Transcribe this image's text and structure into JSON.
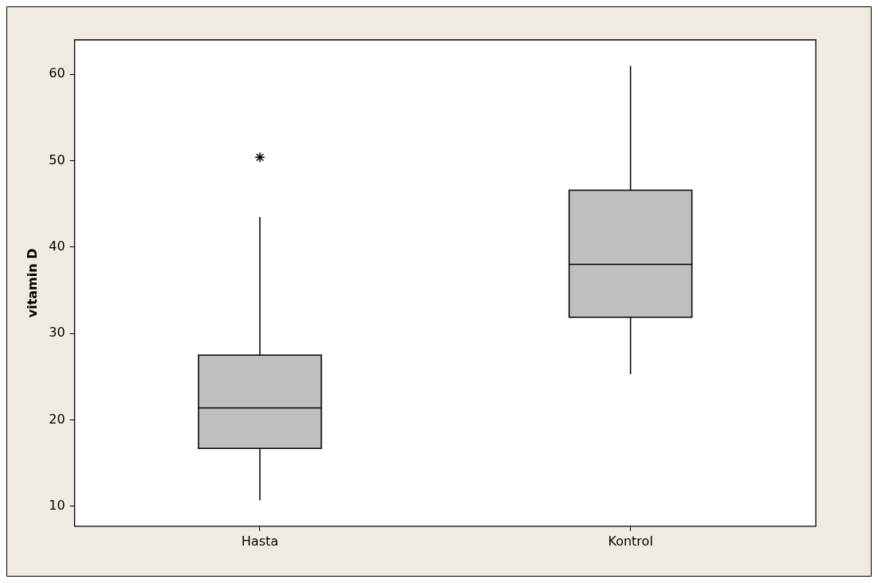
{
  "chart_data": {
    "type": "box",
    "ylabel": "vitamin D",
    "categories": [
      "Hasta",
      "Kontrol"
    ],
    "color": "#c0c0c0",
    "marker": "star",
    "boxes": [
      {
        "low": 10.7,
        "q1": 16.7,
        "median": 21.4,
        "q3": 27.5,
        "high": 43.5,
        "outliers": [
          50.4
        ]
      },
      {
        "low": 25.3,
        "q1": 31.9,
        "median": 38.0,
        "q3": 46.6,
        "high": 61.0
      }
    ],
    "ylim": [
      7.7,
      64.0
    ],
    "yticks": [
      10,
      20,
      30,
      40,
      50,
      60
    ],
    "grid": false,
    "legend": false
  }
}
